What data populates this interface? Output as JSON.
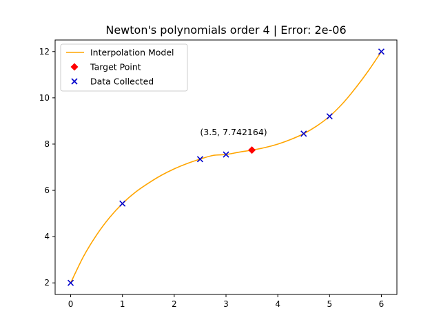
{
  "chart_data": {
    "type": "line",
    "title": "Newton's polynomials order 4 | Error: 2e-06",
    "xlabel": "",
    "ylabel": "",
    "xlim": [
      -0.3,
      6.3
    ],
    "ylim": [
      1.5,
      12.5
    ],
    "xticks": [
      0,
      1,
      2,
      3,
      4,
      5,
      6
    ],
    "yticks": [
      2,
      4,
      6,
      8,
      10,
      12
    ],
    "grid": false,
    "legend_position": "top-left",
    "legend": [
      {
        "label": "Interpolation Model",
        "marker": "line",
        "color": "#ffa500"
      },
      {
        "label": "Target Point",
        "marker": "diamond",
        "color": "#ff0000"
      },
      {
        "label": "Data Collected",
        "marker": "x",
        "color": "#0000cc"
      }
    ],
    "series": [
      {
        "name": "Interpolation Model",
        "kind": "line",
        "color": "#ffa500",
        "x": [
          0,
          0.25,
          0.5,
          0.75,
          1,
          1.25,
          1.5,
          1.75,
          2,
          2.25,
          2.5,
          2.75,
          3,
          3.25,
          3.5,
          3.75,
          4,
          4.25,
          4.5,
          4.75,
          5,
          5.25,
          5.5,
          5.75,
          6
        ],
        "y": [
          2.0,
          3.15,
          4.07,
          4.82,
          5.43,
          5.92,
          6.31,
          6.65,
          6.93,
          7.16,
          7.35,
          7.51,
          7.55,
          7.65,
          7.742,
          7.85,
          8.0,
          8.2,
          8.45,
          8.78,
          9.2,
          9.75,
          10.42,
          11.17,
          12.0
        ]
      },
      {
        "name": "Target Point",
        "kind": "diamond",
        "color": "#ff0000",
        "x": [
          3.5
        ],
        "y": [
          7.742164
        ]
      },
      {
        "name": "Data Collected",
        "kind": "x",
        "color": "#0000cc",
        "x": [
          0,
          1,
          2.5,
          3,
          4.5,
          5,
          6
        ],
        "y": [
          2.0,
          5.43,
          7.35,
          7.55,
          8.45,
          9.2,
          12.0
        ]
      }
    ],
    "annotations": [
      {
        "text": "(3.5, 7.742164)",
        "x": 2.5,
        "y": 8.5
      }
    ]
  }
}
